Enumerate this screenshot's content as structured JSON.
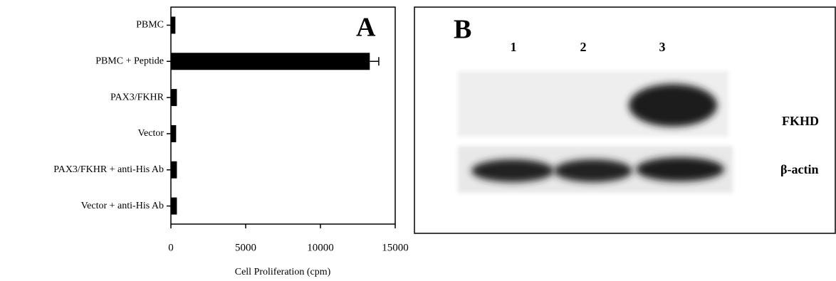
{
  "chart_data": {
    "type": "bar",
    "orientation": "horizontal",
    "panel_label": "A",
    "xlabel": "Cell Proliferation (cpm)",
    "categories": [
      "PBMC",
      "PBMC + Peptide",
      "PAX3/FKHR",
      "Vector",
      "PAX3/FKHR + anti-His Ab",
      "Vector + anti-His Ab"
    ],
    "values": [
      300,
      13300,
      400,
      350,
      400,
      400
    ],
    "errors": [
      null,
      600,
      null,
      null,
      null,
      null
    ],
    "color": "#000000",
    "xlim": [
      0,
      15000
    ],
    "xticks": [
      0,
      5000,
      10000,
      15000
    ]
  },
  "panel_b": {
    "label": "B",
    "lanes": [
      "1",
      "2",
      "3"
    ],
    "rows": [
      "FKHD",
      "β-actin"
    ]
  }
}
